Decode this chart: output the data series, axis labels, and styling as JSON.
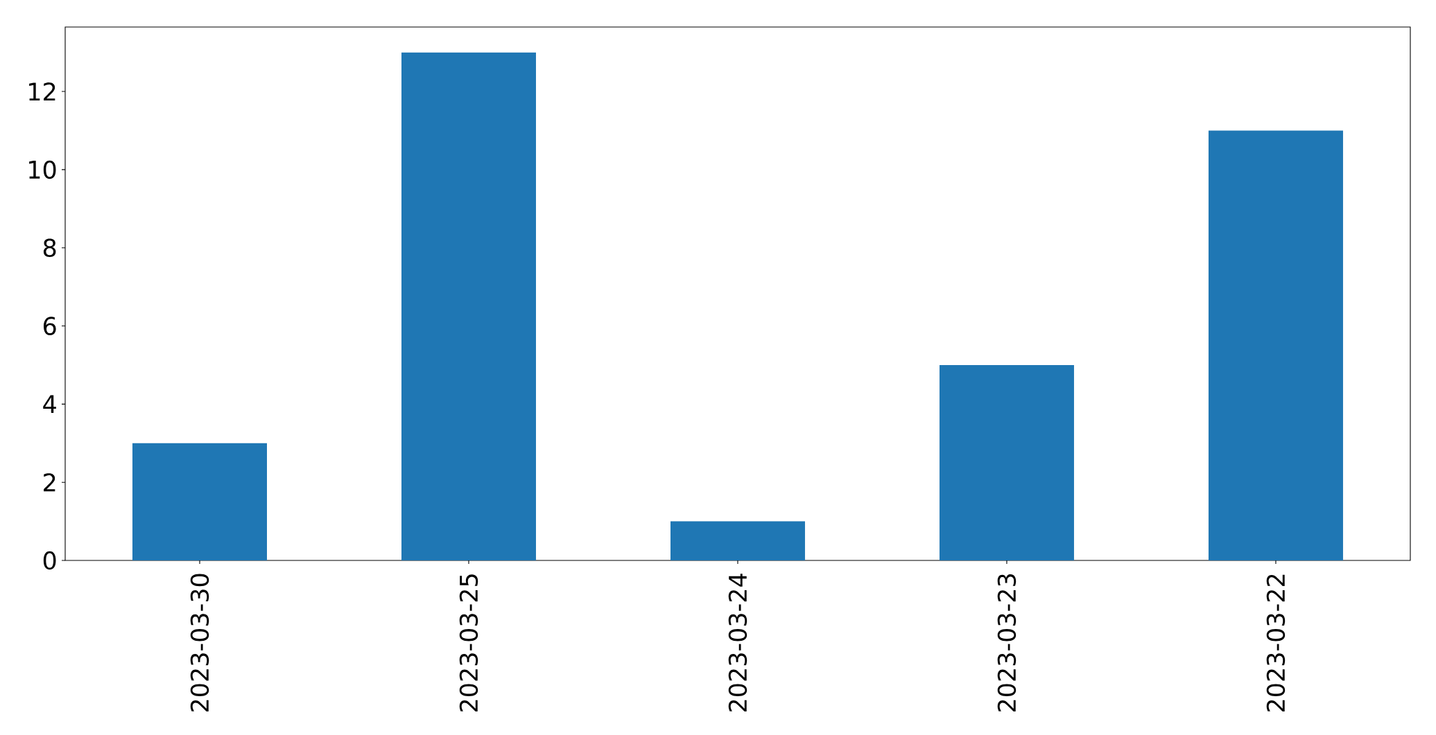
{
  "chart_data": {
    "type": "bar",
    "categories": [
      "2023-03-30",
      "2023-03-25",
      "2023-03-24",
      "2023-03-23",
      "2023-03-22"
    ],
    "values": [
      3,
      13,
      1,
      5,
      11
    ],
    "color": "#1f77b4",
    "ylim": [
      0,
      13.65
    ],
    "yticks": [
      0,
      2,
      4,
      6,
      8,
      10,
      12
    ]
  }
}
